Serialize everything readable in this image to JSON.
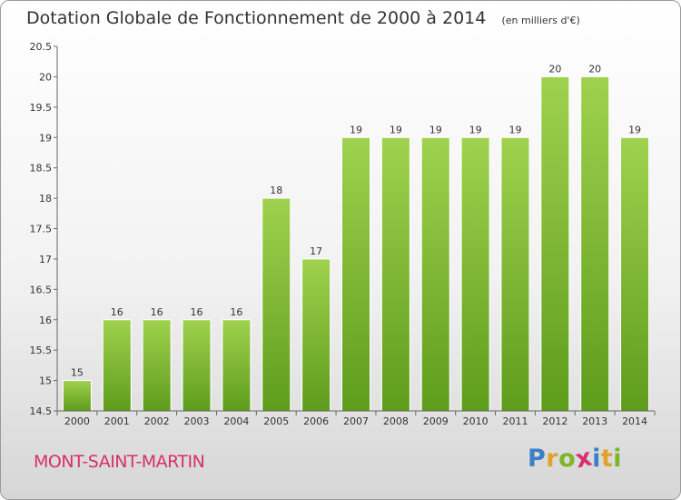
{
  "chart_data": {
    "type": "bar",
    "title": "Dotation Globale de Fonctionnement de 2000 à 2014",
    "subtitle": "(en milliers d'€)",
    "categories": [
      "2000",
      "2001",
      "2002",
      "2003",
      "2004",
      "2005",
      "2006",
      "2007",
      "2008",
      "2009",
      "2010",
      "2011",
      "2012",
      "2013",
      "2014"
    ],
    "values": [
      15,
      16,
      16,
      16,
      16,
      18,
      17,
      19,
      19,
      19,
      19,
      19,
      20,
      20,
      19
    ],
    "value_labels": [
      "15",
      "16",
      "16",
      "16",
      "16",
      "18",
      "17",
      "19",
      "19",
      "19",
      "19",
      "19",
      "20",
      "20",
      "19"
    ],
    "ylim": [
      14.5,
      20.5
    ],
    "yticks": [
      14.5,
      15,
      15.5,
      16,
      16.5,
      17,
      17.5,
      18,
      18.5,
      19,
      19.5,
      20,
      20.5
    ],
    "ytick_labels": [
      "14.5",
      "15",
      "15.5",
      "16",
      "16.5",
      "17",
      "17.5",
      "18",
      "18.5",
      "19",
      "19.5",
      "20",
      "20.5"
    ],
    "grid": false,
    "bar_color": "#7cbf2e"
  },
  "footer": {
    "place": "MONT-SAINT-MARTIN",
    "logo": "Proxiti",
    "logo_letters": [
      {
        "char": "P",
        "color": "#3b7fc4"
      },
      {
        "char": "r",
        "color": "#e0a22a"
      },
      {
        "char": "o",
        "color": "#7db52c"
      },
      {
        "char": "x",
        "color": "#d6306e"
      },
      {
        "char": "i",
        "color": "#3b7fc4"
      },
      {
        "char": "t",
        "color": "#e0a22a"
      },
      {
        "char": "i",
        "color": "#7db52c"
      }
    ]
  }
}
